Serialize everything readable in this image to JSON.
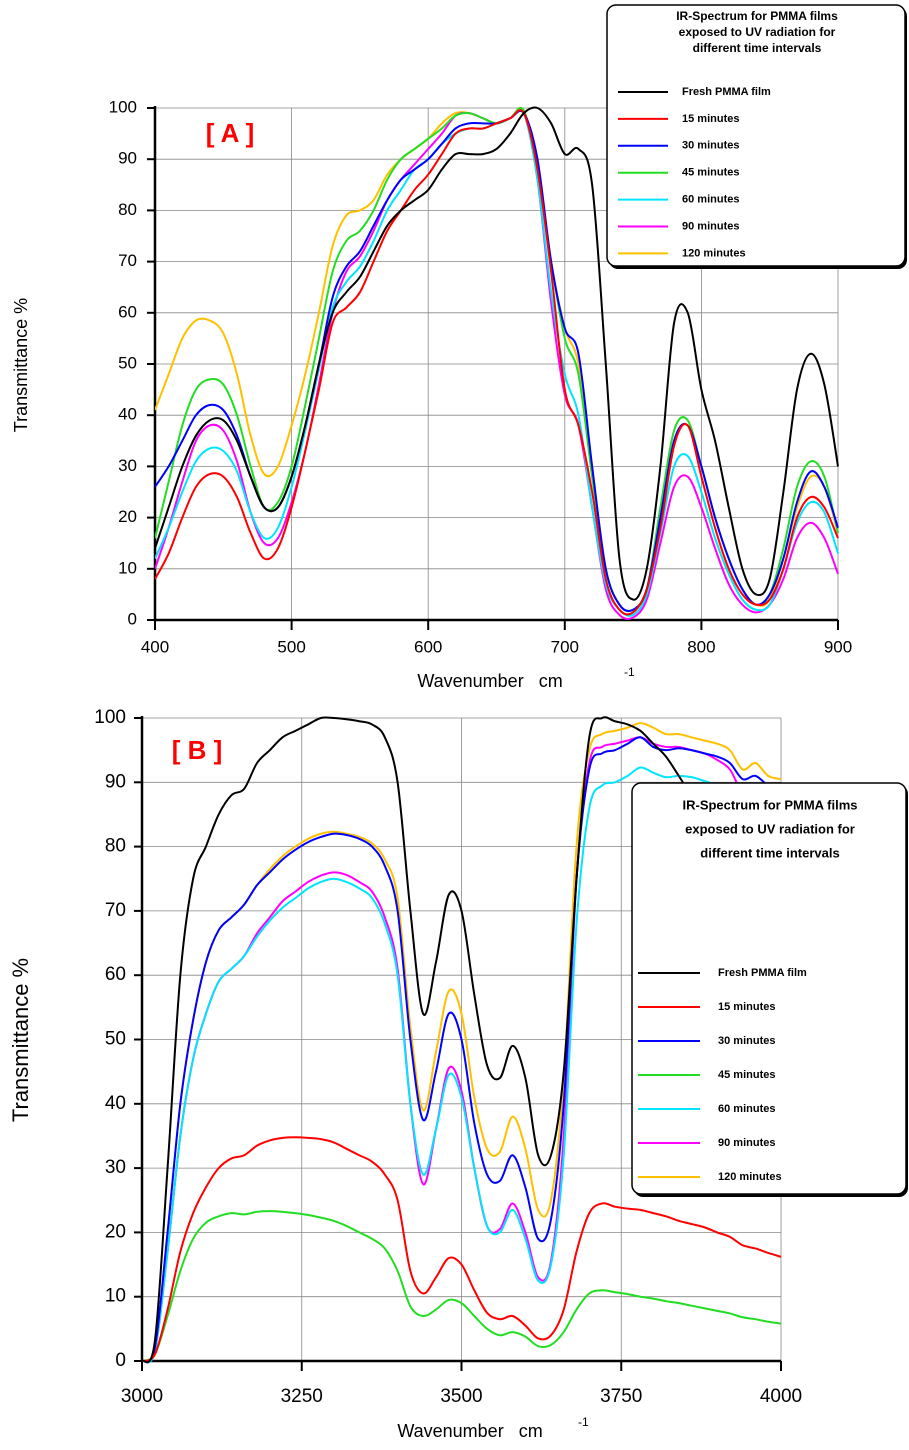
{
  "chart_data": [
    {
      "type": "line",
      "title": "[ A ]",
      "xlabel": "Wavenumber   cm",
      "xlabel_superscript": "-1",
      "ylabel": "Transmittance %",
      "legend_title": [
        "IR-Spectrum for PMMA films",
        "exposed to UV radiation for",
        "different time intervals"
      ],
      "xlim": [
        400,
        900
      ],
      "ylim": [
        0,
        100
      ],
      "xticks": [
        400,
        500,
        600,
        700,
        800,
        900
      ],
      "yticks": [
        0,
        10,
        20,
        30,
        40,
        50,
        60,
        70,
        80,
        90,
        100
      ],
      "grid": true,
      "legend": "top-right",
      "x": [
        400,
        410,
        420,
        430,
        440,
        450,
        460,
        470,
        480,
        490,
        500,
        510,
        520,
        530,
        540,
        550,
        560,
        570,
        580,
        590,
        600,
        610,
        620,
        630,
        640,
        650,
        660,
        670,
        680,
        690,
        700,
        710,
        720,
        730,
        740,
        750,
        760,
        770,
        780,
        790,
        800,
        810,
        820,
        830,
        840,
        850,
        860,
        870,
        880,
        890,
        900
      ],
      "series": [
        {
          "name": "Fresh PMMA film",
          "color": "#000000",
          "values": [
            14,
            22,
            30,
            36,
            39,
            39,
            35,
            28,
            22,
            22,
            28,
            38,
            50,
            60,
            64,
            67,
            72,
            77,
            80,
            82,
            84,
            88,
            91,
            91,
            91,
            92,
            95,
            99,
            100,
            97,
            91,
            92,
            85,
            50,
            12,
            4,
            10,
            30,
            58,
            60,
            45,
            35,
            22,
            10,
            5,
            8,
            25,
            45,
            52,
            46,
            30
          ]
        },
        {
          "name": "15 minutes",
          "color": "#ff0000",
          "values": [
            8,
            13,
            20,
            26,
            28.5,
            28,
            24,
            17,
            12,
            14,
            22,
            33,
            45,
            58,
            61,
            64,
            70,
            76,
            80,
            84,
            87,
            91,
            95,
            96,
            96,
            97,
            98,
            99,
            88,
            68,
            45,
            38,
            25,
            8,
            2,
            1.5,
            6,
            18,
            34,
            38,
            28,
            18,
            10,
            5,
            3,
            4,
            10,
            20,
            24,
            22,
            16
          ]
        },
        {
          "name": "30 minutes",
          "color": "#0000ff",
          "values": [
            26,
            30,
            35,
            40,
            42,
            41,
            36,
            28,
            22,
            22,
            28,
            38,
            50,
            63,
            69,
            72,
            77,
            82,
            86,
            88,
            90,
            93,
            96,
            97,
            97,
            97,
            98,
            99,
            90,
            70,
            57,
            52,
            30,
            10,
            3,
            2,
            6,
            20,
            35,
            38,
            30,
            20,
            12,
            6,
            3,
            5,
            12,
            23,
            29,
            26,
            18
          ]
        },
        {
          "name": "45 minutes",
          "color": "#22dd22",
          "values": [
            16,
            27,
            38,
            45,
            47,
            46,
            40,
            30,
            22,
            23,
            30,
            42,
            55,
            68,
            74,
            76,
            80,
            86,
            90,
            92,
            94,
            96,
            98.5,
            99,
            98,
            97,
            98,
            99.5,
            88,
            70,
            55,
            48,
            28,
            10,
            3,
            2,
            6,
            22,
            37,
            39,
            30,
            20,
            12,
            6,
            3,
            5,
            14,
            26,
            31,
            28,
            17
          ]
        },
        {
          "name": "60 minutes",
          "color": "#00e5ff",
          "values": [
            12,
            18,
            25,
            31,
            33.5,
            33,
            29,
            21,
            16,
            18,
            26,
            37,
            49,
            61,
            66,
            69,
            74,
            80,
            84,
            88,
            90,
            93,
            95,
            96,
            96,
            97,
            98,
            99,
            86,
            64,
            48,
            40,
            22,
            7,
            2,
            1,
            5,
            17,
            30,
            32,
            25,
            16,
            9,
            4,
            2,
            3,
            10,
            19,
            23,
            21,
            13
          ]
        },
        {
          "name": "90 minutes",
          "color": "#ff00ff",
          "values": [
            10,
            18,
            27,
            35,
            38,
            37,
            31,
            21,
            15,
            16,
            23,
            33,
            46,
            60,
            68,
            71,
            76,
            82,
            86,
            89,
            92,
            95,
            98.5,
            99,
            98,
            97,
            98,
            99,
            86,
            62,
            44,
            38,
            22,
            6,
            1,
            0.5,
            4,
            15,
            26,
            28,
            22,
            14,
            7,
            3,
            1.5,
            3,
            8,
            16,
            19,
            16,
            9
          ]
        },
        {
          "name": "120 minutes",
          "color": "#ffc000",
          "values": [
            41,
            48,
            55,
            58.5,
            58.5,
            56,
            48,
            36,
            28.5,
            30,
            38,
            48,
            60,
            73,
            79,
            80,
            82,
            87,
            90,
            92,
            94,
            97,
            99,
            99,
            98,
            97,
            98,
            99.5,
            88,
            70,
            57,
            50,
            30,
            10,
            3,
            2,
            6,
            20,
            35,
            38,
            30,
            20,
            12,
            6,
            3,
            4,
            12,
            22,
            28,
            26,
            17
          ]
        }
      ]
    },
    {
      "type": "line",
      "title": "[ B ]",
      "xlabel": "Wavenumber   cm",
      "xlabel_superscript": "-1",
      "ylabel": "Transmittance  %",
      "legend_title": [
        "IR-Spectrum for PMMA films",
        "exposed to UV radiation for",
        "different time intervals"
      ],
      "xlim": [
        3000,
        4000
      ],
      "ylim": [
        0,
        100
      ],
      "xticks": [
        3000,
        3250,
        3500,
        3750,
        4000
      ],
      "yticks": [
        0,
        10,
        20,
        30,
        40,
        50,
        60,
        70,
        80,
        90,
        100
      ],
      "grid": true,
      "legend": "right",
      "x": [
        3000,
        3020,
        3040,
        3060,
        3080,
        3100,
        3120,
        3140,
        3160,
        3180,
        3200,
        3220,
        3240,
        3260,
        3280,
        3300,
        3320,
        3340,
        3360,
        3380,
        3400,
        3420,
        3440,
        3460,
        3480,
        3500,
        3520,
        3540,
        3560,
        3580,
        3600,
        3620,
        3640,
        3660,
        3680,
        3700,
        3720,
        3740,
        3760,
        3780,
        3800,
        3820,
        3840,
        3860,
        3880,
        3900,
        3920,
        3940,
        3960,
        3980,
        4000
      ],
      "series": [
        {
          "name": "Fresh PMMA film",
          "color": "#000000",
          "values": [
            0,
            3,
            30,
            60,
            75,
            80,
            85,
            88,
            89,
            93,
            95,
            97,
            98,
            99,
            100,
            100,
            99.8,
            99.5,
            99,
            97,
            90,
            70,
            54,
            62,
            72.5,
            70,
            57,
            46,
            44,
            49,
            44,
            32,
            32,
            45,
            75,
            97,
            100,
            99.5,
            99,
            98,
            96,
            94,
            91,
            88,
            86,
            84,
            82,
            79,
            78.5,
            77,
            75
          ]
        },
        {
          "name": "15 minutes",
          "color": "#ff0000",
          "values": [
            0,
            1,
            8,
            17,
            23,
            27,
            30,
            31.5,
            32,
            33.5,
            34.3,
            34.7,
            34.8,
            34.7,
            34.5,
            34,
            33,
            32,
            31,
            29,
            25,
            14,
            10.5,
            13,
            16,
            15,
            11,
            7.5,
            6.5,
            7,
            5.5,
            3.5,
            4,
            8,
            17,
            23,
            24.5,
            24,
            23.7,
            23.5,
            23,
            22.5,
            21.8,
            21.3,
            20.8,
            20,
            19.3,
            18,
            17.5,
            16.8,
            16.2
          ]
        },
        {
          "name": "30 minutes",
          "color": "#0000ff",
          "values": [
            0,
            2,
            20,
            40,
            53,
            62,
            67,
            69,
            71,
            74,
            76,
            78,
            79.5,
            80.7,
            81.5,
            82,
            81.8,
            81.2,
            80,
            77,
            70,
            50,
            37.5,
            45,
            54,
            50,
            37,
            29,
            28,
            32,
            27,
            19,
            22,
            40,
            75,
            92,
            94.5,
            95,
            96,
            97,
            95.5,
            95,
            95.3,
            95,
            94.5,
            94,
            93,
            90.5,
            91,
            89.5,
            89
          ]
        },
        {
          "name": "45 minutes",
          "color": "#22dd22",
          "values": [
            0,
            1,
            7,
            14,
            19,
            21.5,
            22.5,
            23,
            22.8,
            23.2,
            23.3,
            23.2,
            23,
            22.7,
            22.3,
            21.8,
            21,
            20,
            19,
            17.5,
            14,
            8.5,
            7,
            8,
            9.5,
            9,
            7,
            5,
            4,
            4.5,
            3.8,
            2.3,
            2.5,
            4.5,
            8,
            10.5,
            11,
            10.7,
            10.4,
            10,
            9.7,
            9.3,
            9,
            8.6,
            8.2,
            7.8,
            7.4,
            6.8,
            6.5,
            6.1,
            5.8
          ]
        },
        {
          "name": "60 minutes",
          "color": "#00e5ff",
          "values": [
            0,
            1.5,
            17,
            35,
            47,
            54,
            59,
            61,
            63,
            66,
            68.5,
            70.5,
            72,
            73.5,
            74.5,
            75,
            74.5,
            73.5,
            72,
            68,
            60,
            40,
            29,
            36,
            44.5,
            41,
            30,
            21,
            20,
            23.5,
            19,
            12.5,
            15,
            32,
            68,
            86,
            89.5,
            90,
            91,
            92.3,
            91.5,
            90.8,
            91,
            90.8,
            90.2,
            89.5,
            88,
            84.5,
            86.5,
            84.5,
            84
          ]
        },
        {
          "name": "90 minutes",
          "color": "#ff00ff",
          "values": [
            0,
            1.5,
            17,
            35,
            47,
            54,
            59,
            61,
            63,
            66.5,
            69,
            71.5,
            73,
            74.5,
            75.5,
            76,
            75.6,
            74.5,
            73,
            69,
            61,
            40,
            27.5,
            36,
            45.5,
            42,
            30,
            21,
            20.5,
            24.5,
            20,
            13,
            15.5,
            35,
            75,
            93,
            95.5,
            96,
            96.5,
            97,
            96,
            95.5,
            95.5,
            95,
            94.5,
            93.5,
            92,
            88.5,
            89.5,
            88,
            87.5
          ]
        },
        {
          "name": "120 minutes",
          "color": "#ffc000",
          "values": [
            0,
            2,
            20,
            40,
            53,
            62,
            67,
            69,
            71,
            74,
            76.5,
            78.5,
            80,
            81.2,
            82,
            82.3,
            82,
            81.5,
            80.5,
            78,
            72,
            52,
            39,
            48,
            57.5,
            54,
            41,
            33,
            32.5,
            38,
            33,
            23.5,
            25,
            44,
            80,
            95,
            97.5,
            98,
            98.5,
            99.2,
            98.5,
            97.5,
            97.5,
            97,
            96.5,
            96,
            95,
            92,
            93,
            91,
            90.5
          ]
        }
      ]
    }
  ]
}
